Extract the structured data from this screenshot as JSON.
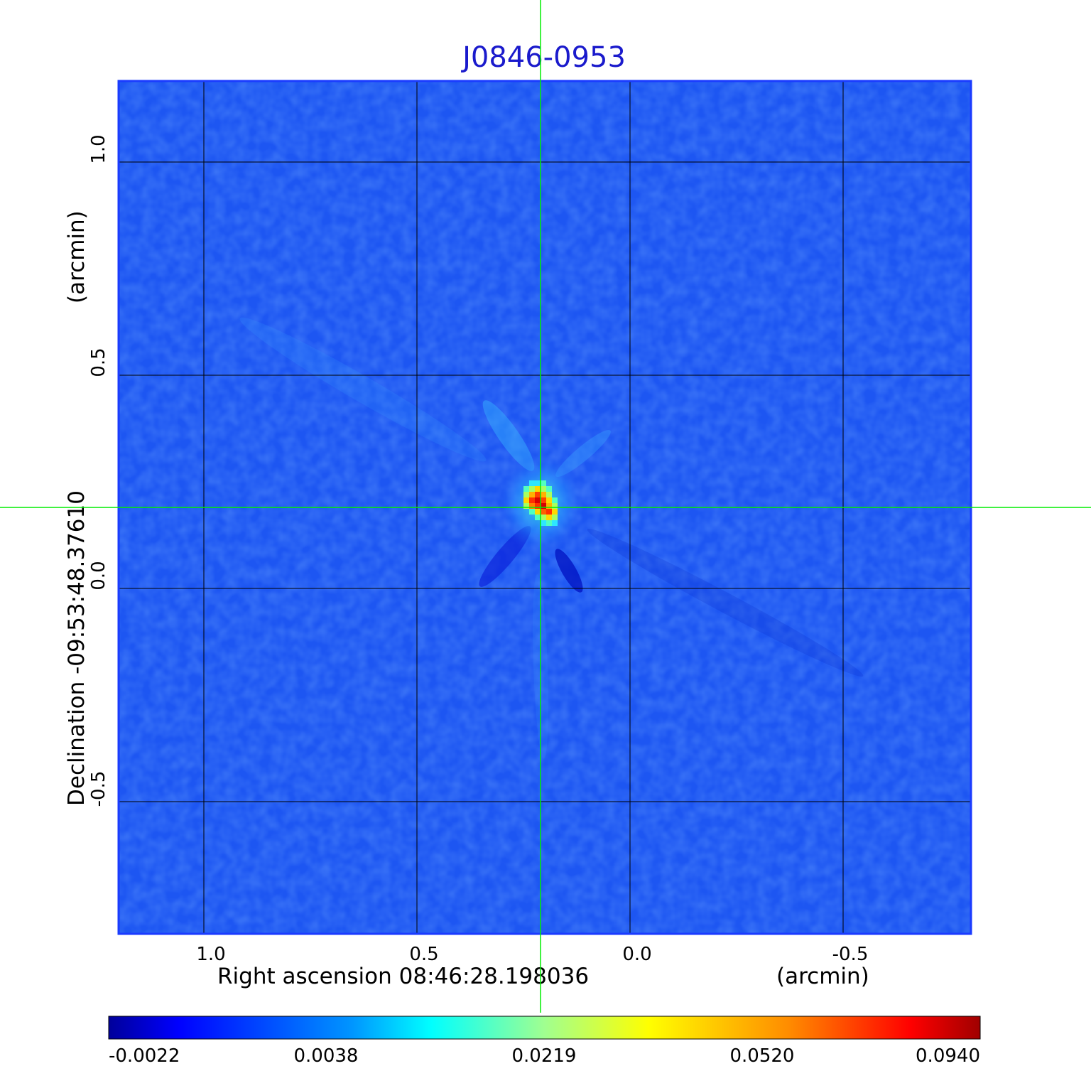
{
  "chart_data": {
    "type": "heatmap",
    "title": "J0846-0953",
    "xlabel": "Right ascension  08:46:28.198036",
    "xunit": "(arcmin)",
    "ylabel": "Declination  -09:53:48.37610",
    "yunit": "(arcmin)",
    "x_ticks": [
      "1.0",
      "0.5",
      "0.0",
      "-0.5"
    ],
    "x_tick_values": [
      1.0,
      0.5,
      0.0,
      -0.5
    ],
    "y_ticks": [
      "1.0",
      "0.5",
      "0.0",
      "-0.5"
    ],
    "y_tick_values": [
      1.0,
      0.5,
      0.0,
      -0.5
    ],
    "xlim": [
      1.2,
      -0.8
    ],
    "ylim": [
      -0.81,
      1.19
    ],
    "grid": true,
    "crosshair": {
      "x": 0.21,
      "y": 0.19,
      "color": "#00ee00"
    },
    "source_peak": {
      "x": 0.21,
      "y": 0.2,
      "value": 0.094
    },
    "colormap": "jet",
    "colorbar": {
      "ticks": [
        "-0.0022",
        "0.0038",
        "0.0219",
        "0.0520",
        "0.0940"
      ],
      "tick_values": [
        -0.0022,
        0.0038,
        0.0219,
        0.052,
        0.094
      ],
      "orientation": "horizontal"
    },
    "colors": {
      "frame": "#1a3bff",
      "background": "#1d56f2",
      "title": "#1a1acc",
      "grid": "#000000"
    }
  }
}
